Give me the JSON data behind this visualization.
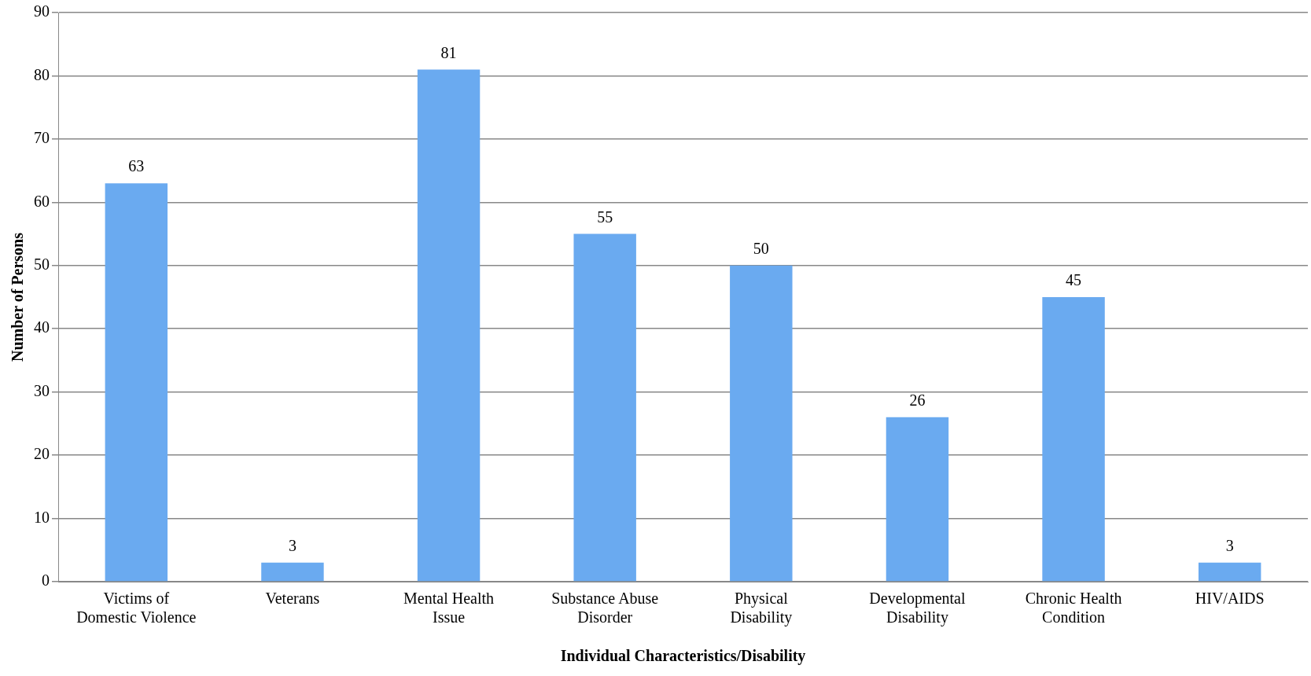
{
  "chart_data": {
    "type": "bar",
    "xlabel": "Individual Characteristics/Disability",
    "ylabel": "Number of Persons",
    "categories": [
      "Victims of Domestic Violence",
      "Veterans",
      "Mental Health Issue",
      "Substance Abuse Disorder",
      "Physical Disability",
      "Developmental Disability",
      "Chronic Health Condition",
      "HIV/AIDS"
    ],
    "values": [
      63,
      3,
      81,
      55,
      50,
      26,
      45,
      3
    ],
    "color": "#6aaaf0",
    "ylim": [
      0,
      90
    ],
    "yticks": [
      0,
      10,
      20,
      30,
      40,
      50,
      60,
      70,
      80,
      90
    ],
    "grid": "y",
    "data_labels": true,
    "legend": false
  }
}
